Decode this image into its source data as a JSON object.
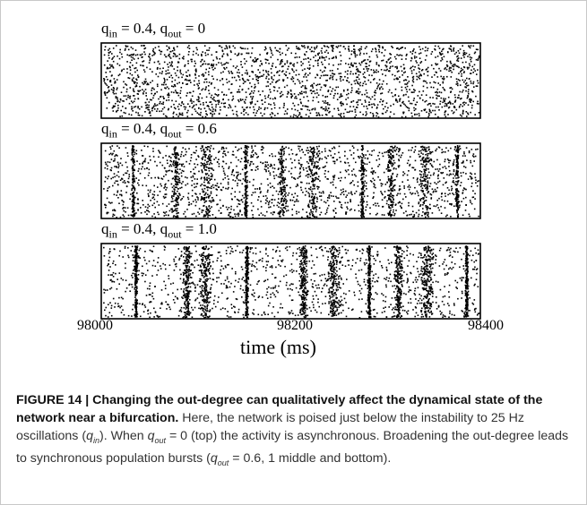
{
  "panels": [
    {
      "label_prefix": "q",
      "label_sub1": "in",
      "label_mid": " = 0.4, q",
      "label_sub2": "out",
      "label_suffix": " = 0",
      "sync_strength": 0.0,
      "burst_times": []
    },
    {
      "label_prefix": "q",
      "label_sub1": "in",
      "label_mid": " = 0.4, q",
      "label_sub2": "out",
      "label_suffix": " = 0.6",
      "sync_strength": 0.55,
      "burst_times": [
        98033,
        98078,
        98111,
        98152,
        98190,
        98223,
        98275,
        98305,
        98341,
        98375
      ]
    },
    {
      "label_prefix": "q",
      "label_sub1": "in",
      "label_mid": " = 0.4,  q",
      "label_sub2": "out",
      "label_suffix": " = 1.0",
      "sync_strength": 1.0,
      "burst_times": [
        98036,
        98090,
        98109,
        98153,
        98213,
        98245,
        98282,
        98313,
        98343,
        98385
      ]
    }
  ],
  "x_axis": {
    "min": 98000,
    "max": 98400,
    "ticks": [
      "98000",
      "98200",
      "98400"
    ],
    "label": "time (ms)"
  },
  "caption": {
    "figure_label": "FIGURE 14 | Changing the out-degree can qualitatively affect the dynamical state of the network near a bifurcation.",
    "t1": " Here, the network is poised just below the instability to 25 Hz oscillations (",
    "q1": "q",
    "s1": "in",
    "t2": "). When ",
    "q2": "q",
    "s2": "out",
    "t3": " = 0 (top) the activity is asynchronous. Broadening the out-degree leads to synchronous population bursts (",
    "q3": "q",
    "s3": "out",
    "t4": " = 0.6, 1 middle and bottom)."
  }
}
